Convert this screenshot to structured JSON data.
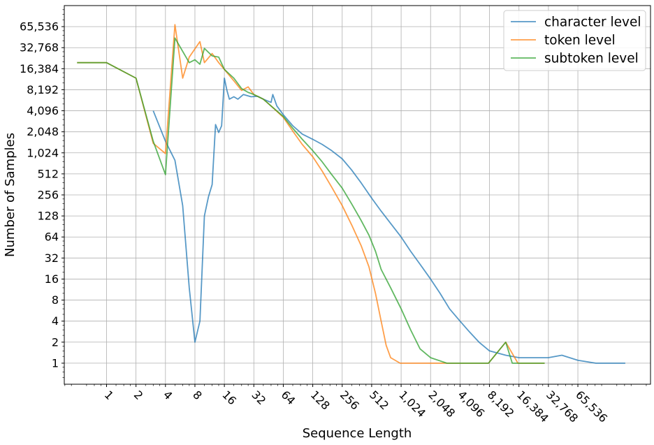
{
  "chart_data": {
    "type": "line",
    "xlabel": "Sequence Length",
    "ylabel": "Number of Samples",
    "x_scale": "log2",
    "y_scale": "log2",
    "xlim": [
      0.37,
      362000
    ],
    "ylim": [
      0.5,
      131072
    ],
    "grid": true,
    "legend_position": "top-right",
    "x_ticks": [
      1,
      2,
      4,
      8,
      16,
      32,
      64,
      128,
      256,
      512,
      1024,
      2048,
      4096,
      8192,
      16384,
      32768,
      65536
    ],
    "x_tick_labels": [
      "1",
      "2",
      "4",
      "8",
      "16",
      "32",
      "64",
      "128",
      "256",
      "512",
      "1,024",
      "2,048",
      "4,096",
      "8,192",
      "16,384",
      "32,768",
      "65,536"
    ],
    "y_ticks": [
      1,
      2,
      4,
      8,
      16,
      32,
      64,
      128,
      256,
      512,
      1024,
      2048,
      4096,
      8192,
      16384,
      32768,
      65536
    ],
    "y_tick_labels": [
      "1",
      "2",
      "4",
      "8",
      "16",
      "32",
      "64",
      "128",
      "256",
      "512",
      "1,024",
      "2,048",
      "4,096",
      "8,192",
      "16,384",
      "32,768",
      "65,536"
    ],
    "series": [
      {
        "name": "character level",
        "color": "#1f77b4",
        "points": [
          [
            3,
            4096
          ],
          [
            4,
            1500
          ],
          [
            5,
            800
          ],
          [
            6,
            180
          ],
          [
            7,
            12
          ],
          [
            8,
            2
          ],
          [
            9,
            4
          ],
          [
            10,
            128
          ],
          [
            11,
            240
          ],
          [
            12,
            360
          ],
          [
            13,
            2600
          ],
          [
            14,
            2000
          ],
          [
            15,
            2500
          ],
          [
            16,
            12000
          ],
          [
            17,
            8000
          ],
          [
            18,
            6000
          ],
          [
            20,
            6500
          ],
          [
            22,
            6000
          ],
          [
            25,
            7000
          ],
          [
            30,
            6500
          ],
          [
            35,
            6600
          ],
          [
            40,
            6000
          ],
          [
            48,
            5400
          ],
          [
            50,
            7000
          ],
          [
            55,
            4800
          ],
          [
            64,
            3600
          ],
          [
            80,
            2500
          ],
          [
            100,
            1900
          ],
          [
            128,
            1600
          ],
          [
            160,
            1350
          ],
          [
            200,
            1100
          ],
          [
            256,
            840
          ],
          [
            320,
            580
          ],
          [
            400,
            380
          ],
          [
            512,
            230
          ],
          [
            640,
            150
          ],
          [
            800,
            100
          ],
          [
            1024,
            64
          ],
          [
            1280,
            40
          ],
          [
            1600,
            26
          ],
          [
            2048,
            16
          ],
          [
            2560,
            10
          ],
          [
            3200,
            6
          ],
          [
            4096,
            4
          ],
          [
            5120,
            2.8
          ],
          [
            6400,
            2
          ],
          [
            8192,
            1.5
          ],
          [
            12000,
            1.3
          ],
          [
            16384,
            1.2
          ],
          [
            24000,
            1.2
          ],
          [
            32768,
            1.2
          ],
          [
            45000,
            1.3
          ],
          [
            65536,
            1.1
          ],
          [
            100000,
            1
          ],
          [
            200000,
            1
          ]
        ]
      },
      {
        "name": "token level",
        "color": "#ff7f0e",
        "points": [
          [
            0.5,
            20000
          ],
          [
            1,
            20000
          ],
          [
            2,
            12000
          ],
          [
            3,
            1400
          ],
          [
            4,
            1000
          ],
          [
            5,
            70000
          ],
          [
            6,
            12000
          ],
          [
            7,
            24000
          ],
          [
            9,
            40000
          ],
          [
            10,
            20000
          ],
          [
            12,
            27000
          ],
          [
            14,
            20000
          ],
          [
            16,
            16000
          ],
          [
            20,
            11000
          ],
          [
            24,
            8000
          ],
          [
            28,
            9000
          ],
          [
            32,
            7000
          ],
          [
            40,
            6000
          ],
          [
            48,
            4800
          ],
          [
            64,
            3300
          ],
          [
            80,
            2100
          ],
          [
            100,
            1350
          ],
          [
            128,
            900
          ],
          [
            160,
            560
          ],
          [
            200,
            330
          ],
          [
            256,
            180
          ],
          [
            320,
            95
          ],
          [
            400,
            48
          ],
          [
            480,
            24
          ],
          [
            560,
            10
          ],
          [
            640,
            4
          ],
          [
            720,
            1.8
          ],
          [
            800,
            1.2
          ],
          [
            1000,
            1
          ],
          [
            8000,
            1
          ],
          [
            12000,
            2
          ],
          [
            16000,
            1
          ],
          [
            30000,
            1
          ]
        ]
      },
      {
        "name": "subtoken level",
        "color": "#2ca02c",
        "points": [
          [
            0.5,
            20000
          ],
          [
            1,
            20000
          ],
          [
            2,
            12000
          ],
          [
            3,
            1500
          ],
          [
            4,
            500
          ],
          [
            5,
            45000
          ],
          [
            7,
            20000
          ],
          [
            8,
            22000
          ],
          [
            9,
            19000
          ],
          [
            10,
            32000
          ],
          [
            12,
            25000
          ],
          [
            14,
            24000
          ],
          [
            16,
            16000
          ],
          [
            20,
            12000
          ],
          [
            24,
            8500
          ],
          [
            28,
            7500
          ],
          [
            32,
            7000
          ],
          [
            40,
            6000
          ],
          [
            48,
            4800
          ],
          [
            64,
            3400
          ],
          [
            80,
            2300
          ],
          [
            100,
            1600
          ],
          [
            128,
            1100
          ],
          [
            160,
            760
          ],
          [
            200,
            500
          ],
          [
            256,
            320
          ],
          [
            320,
            190
          ],
          [
            400,
            110
          ],
          [
            480,
            68
          ],
          [
            560,
            40
          ],
          [
            640,
            22
          ],
          [
            800,
            12
          ],
          [
            1024,
            6
          ],
          [
            1280,
            3
          ],
          [
            1600,
            1.6
          ],
          [
            2048,
            1.2
          ],
          [
            3000,
            1
          ],
          [
            8000,
            1
          ],
          [
            12000,
            2
          ],
          [
            14000,
            1
          ],
          [
            30000,
            1
          ]
        ]
      }
    ]
  }
}
